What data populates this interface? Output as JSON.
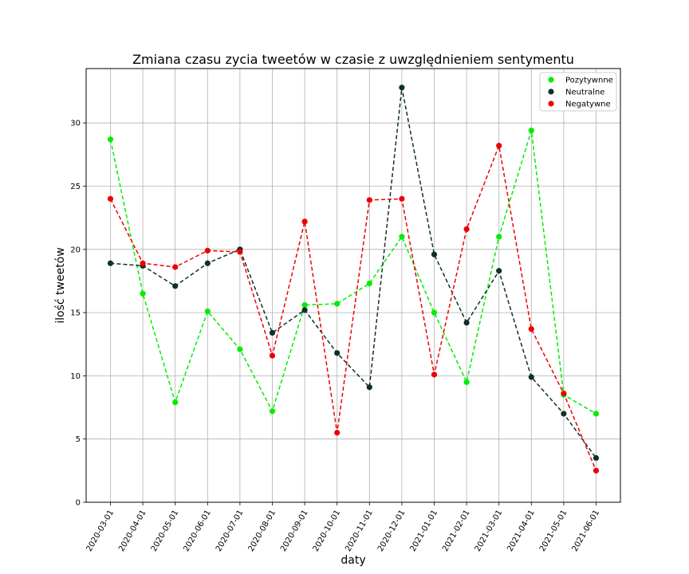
{
  "chart_data": {
    "type": "line",
    "title": "Zmiana czasu zycia tweetów w czasie z uwzględnieniem sentymentu",
    "xlabel": "daty",
    "ylabel": "ilość tweetów",
    "categories": [
      "2020-03-01",
      "2020-04-01",
      "2020-05-01",
      "2020-06-01",
      "2020-07-01",
      "2020-08-01",
      "2020-09-01",
      "2020-10-01",
      "2020-11-01",
      "2020-12-01",
      "2021-01-01",
      "2021-02-01",
      "2021-03-01",
      "2021-04-01",
      "2021-05-01",
      "2021-06-01"
    ],
    "ylim": [
      0,
      34.3
    ],
    "yticks": [
      0,
      5,
      10,
      15,
      20,
      25,
      30
    ],
    "grid": true,
    "legend_position": "top-right",
    "line_style": "dashed",
    "series": [
      {
        "name": "Pozytywnne",
        "color": "#00ee00",
        "values": [
          28.7,
          16.5,
          7.9,
          15.1,
          12.1,
          7.2,
          15.6,
          15.7,
          17.3,
          21.0,
          15.0,
          9.5,
          21.0,
          29.4,
          8.5,
          7.0
        ]
      },
      {
        "name": "Neutralne",
        "color": "#10302a",
        "values": [
          18.9,
          18.7,
          17.1,
          18.9,
          20.0,
          13.4,
          15.2,
          11.8,
          9.1,
          32.8,
          19.6,
          14.2,
          18.3,
          9.9,
          7.0,
          3.5
        ]
      },
      {
        "name": "Negatywne",
        "color": "#ee0000",
        "values": [
          24.0,
          18.9,
          18.6,
          19.9,
          19.8,
          11.6,
          22.2,
          5.5,
          23.9,
          24.0,
          10.1,
          21.6,
          28.2,
          13.7,
          8.6,
          2.5
        ]
      }
    ]
  }
}
